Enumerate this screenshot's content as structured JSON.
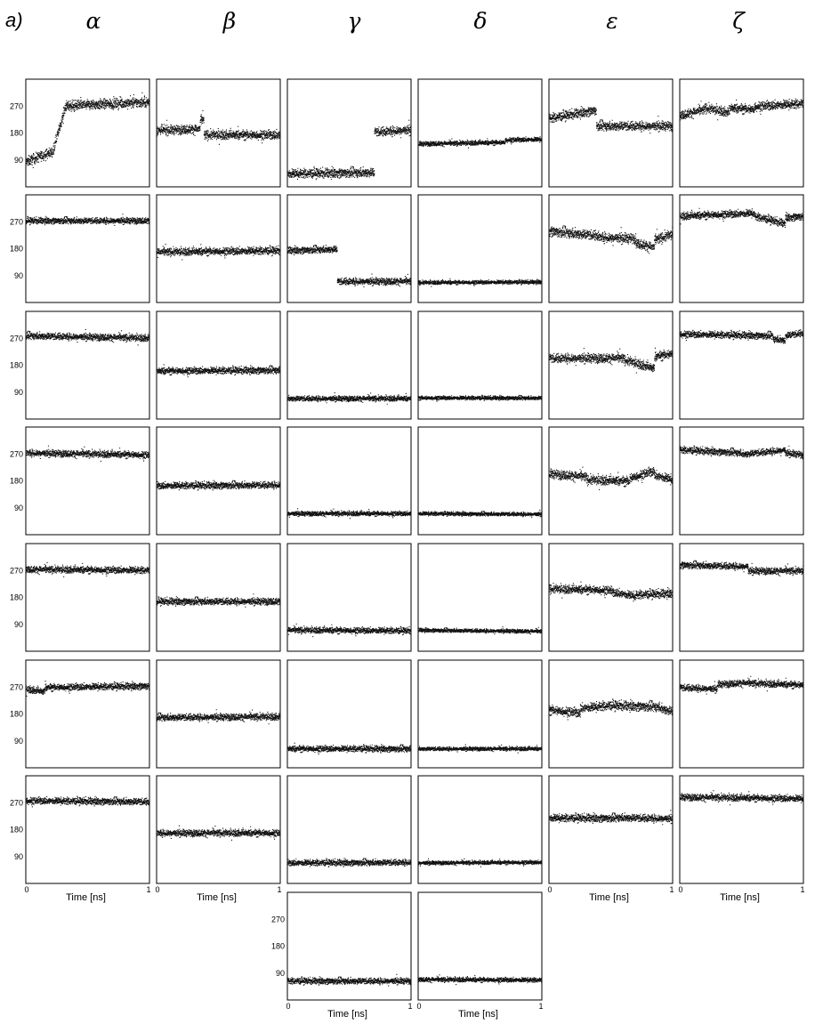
{
  "figure": {
    "panel_label": "a)",
    "column_headers": [
      "α",
      "β",
      "γ",
      "δ",
      "ε",
      "ζ"
    ],
    "x_axis_title": "Time [ns]",
    "x_tick_labels": [
      "0",
      "1"
    ],
    "y_tick_labels": [
      "90",
      "180",
      "270"
    ]
  },
  "chart_data": {
    "type": "scatter",
    "description_of_grid": "6 dihedral-angle columns x 7 rows of time traces, plus an 8th row for gamma and delta",
    "xlim": [
      0,
      1
    ],
    "ylim": [
      0,
      360
    ],
    "yticks": [
      90,
      180,
      270
    ],
    "columns": [
      "α",
      "β",
      "γ",
      "δ",
      "ε",
      "ζ"
    ],
    "rows": [
      [
        {
          "segments": [
            [
              0,
              0.22,
              85,
              120
            ],
            [
              0.22,
              0.32,
              130,
              270
            ],
            [
              0.32,
              1,
              272,
              285
            ]
          ],
          "noise": 13
        },
        {
          "segments": [
            [
              0,
              0.35,
              190,
              195
            ],
            [
              0.35,
              0.38,
              225,
              225
            ],
            [
              0.38,
              1,
              175,
              175
            ]
          ],
          "noise": 12
        },
        {
          "segments": [
            [
              0,
              0.7,
              45,
              50
            ],
            [
              0.7,
              1,
              185,
              192
            ]
          ],
          "noise": 12
        },
        {
          "segments": [
            [
              0,
              0.7,
              145,
              150
            ],
            [
              0.7,
              1,
              158,
              160
            ]
          ],
          "noise": 6
        },
        {
          "segments": [
            [
              0,
              0.38,
              230,
              258
            ],
            [
              0.38,
              1,
              205,
              205
            ]
          ],
          "noise": 12
        },
        {
          "segments": [
            [
              0,
              0.2,
              240,
              260
            ],
            [
              0.2,
              0.4,
              265,
              250
            ],
            [
              0.4,
              0.6,
              265,
              260
            ],
            [
              0.6,
              1,
              270,
              280
            ]
          ],
          "noise": 12
        }
      ],
      [
        {
          "segments": [
            [
              0,
              1,
              275,
              275
            ]
          ],
          "noise": 8
        },
        {
          "segments": [
            [
              0,
              1,
              170,
              175
            ]
          ],
          "noise": 10
        },
        {
          "segments": [
            [
              0,
              0.4,
              175,
              180
            ],
            [
              0.4,
              1,
              72,
              72
            ]
          ],
          "noise": 9
        },
        {
          "segments": [
            [
              0,
              1,
              68,
              70
            ]
          ],
          "noise": 5
        },
        {
          "segments": [
            [
              0,
              0.4,
              240,
              225
            ],
            [
              0.4,
              0.7,
              220,
              215
            ],
            [
              0.7,
              0.85,
              200,
              185
            ],
            [
              0.85,
              1,
              210,
              230
            ]
          ],
          "noise": 13
        },
        {
          "segments": [
            [
              0,
              0.6,
              290,
              300
            ],
            [
              0.6,
              0.85,
              290,
              265
            ],
            [
              0.85,
              1,
              285,
              290
            ]
          ],
          "noise": 10
        }
      ],
      [
        {
          "segments": [
            [
              0,
              1,
              280,
              272
            ]
          ],
          "noise": 9
        },
        {
          "segments": [
            [
              0,
              1,
              162,
              165
            ]
          ],
          "noise": 9
        },
        {
          "segments": [
            [
              0,
              1,
              70,
              70
            ]
          ],
          "noise": 7
        },
        {
          "segments": [
            [
              0,
              1,
              72,
              72
            ]
          ],
          "noise": 5
        },
        {
          "segments": [
            [
              0,
              0.6,
              205,
              205
            ],
            [
              0.6,
              0.85,
              200,
              170
            ],
            [
              0.85,
              1,
              210,
              220
            ]
          ],
          "noise": 12
        },
        {
          "segments": [
            [
              0,
              0.75,
              285,
              280
            ],
            [
              0.75,
              0.85,
              270,
              265
            ],
            [
              0.85,
              1,
              280,
              290
            ]
          ],
          "noise": 9
        }
      ],
      [
        {
          "segments": [
            [
              0,
              1,
              275,
              268
            ]
          ],
          "noise": 9
        },
        {
          "segments": [
            [
              0,
              1,
              165,
              168
            ]
          ],
          "noise": 9
        },
        {
          "segments": [
            [
              0,
              1,
              72,
              72
            ]
          ],
          "noise": 6
        },
        {
          "segments": [
            [
              0,
              1,
              72,
              70
            ]
          ],
          "noise": 5
        },
        {
          "segments": [
            [
              0,
              0.3,
              205,
              195
            ],
            [
              0.3,
              0.65,
              185,
              180
            ],
            [
              0.65,
              0.85,
              190,
              215
            ],
            [
              0.85,
              1,
              200,
              185
            ]
          ],
          "noise": 12
        },
        {
          "segments": [
            [
              0,
              0.5,
              285,
              275
            ],
            [
              0.5,
              0.85,
              270,
              285
            ],
            [
              0.85,
              1,
              275,
              268
            ]
          ],
          "noise": 9
        }
      ],
      [
        {
          "segments": [
            [
              0,
              1,
              275,
              272
            ]
          ],
          "noise": 9
        },
        {
          "segments": [
            [
              0,
              1,
              168,
              168
            ]
          ],
          "noise": 9
        },
        {
          "segments": [
            [
              0,
              1,
              72,
              70
            ]
          ],
          "noise": 8
        },
        {
          "segments": [
            [
              0,
              1,
              72,
              68
            ]
          ],
          "noise": 5
        },
        {
          "segments": [
            [
              0,
              0.5,
              210,
              205
            ],
            [
              0.5,
              0.7,
              200,
              185
            ],
            [
              0.7,
              1,
              190,
              195
            ]
          ],
          "noise": 11
        },
        {
          "segments": [
            [
              0,
              0.55,
              290,
              285
            ],
            [
              0.55,
              1,
              270,
              270
            ]
          ],
          "noise": 9
        }
      ],
      [
        {
          "segments": [
            [
              0,
              0.15,
              265,
              255
            ],
            [
              0.15,
              1,
              270,
              275
            ]
          ],
          "noise": 9
        },
        {
          "segments": [
            [
              0,
              1,
              170,
              172
            ]
          ],
          "noise": 9
        },
        {
          "segments": [
            [
              0,
              1,
              65,
              65
            ]
          ],
          "noise": 8
        },
        {
          "segments": [
            [
              0,
              1,
              65,
              65
            ]
          ],
          "noise": 5
        },
        {
          "segments": [
            [
              0,
              0.25,
              195,
              185
            ],
            [
              0.25,
              0.5,
              200,
              210
            ],
            [
              0.5,
              0.9,
              210,
              205
            ],
            [
              0.9,
              1,
              200,
              190
            ]
          ],
          "noise": 12
        },
        {
          "segments": [
            [
              0,
              0.3,
              270,
              265
            ],
            [
              0.3,
              0.5,
              280,
              285
            ],
            [
              0.5,
              1,
              285,
              278
            ]
          ],
          "noise": 9
        }
      ],
      [
        {
          "segments": [
            [
              0,
              1,
              278,
              275
            ]
          ],
          "noise": 9
        },
        {
          "segments": [
            [
              0,
              1,
              170,
              170
            ]
          ],
          "noise": 9
        },
        {
          "segments": [
            [
              0,
              1,
              70,
              72
            ]
          ],
          "noise": 8
        },
        {
          "segments": [
            [
              0,
              1,
              70,
              72
            ]
          ],
          "noise": 5
        },
        {
          "segments": [
            [
              0,
              0.55,
              220,
              220
            ],
            [
              0.55,
              1,
              222,
              218
            ]
          ],
          "noise": 10
        },
        {
          "segments": [
            [
              0,
              1,
              290,
              285
            ]
          ],
          "noise": 9
        }
      ],
      [
        null,
        null,
        {
          "segments": [
            [
              0,
              1,
              65,
              65
            ]
          ],
          "noise": 8
        },
        {
          "segments": [
            [
              0,
              1,
              70,
              68
            ]
          ],
          "noise": 6
        },
        null,
        null
      ]
    ]
  }
}
